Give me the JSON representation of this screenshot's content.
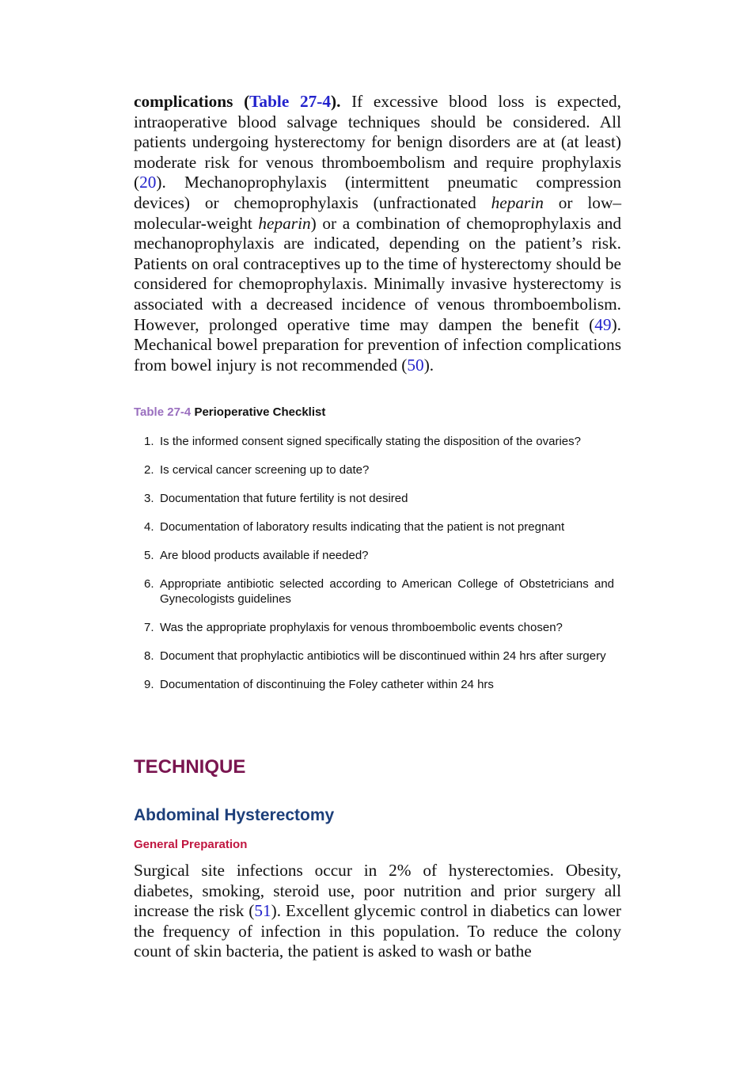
{
  "body_paragraph_1": {
    "runs": [
      "complications (",
      "Table 27-4",
      ").",
      " If excessive blood loss is expected, intraoperative blood salvage techniques should be considered. All patients undergoing hysterectomy for benign disorders are at (at least) moderate risk for venous thromboembolism and require prophylaxis (",
      "20",
      "). Mechanoprophylaxis (intermittent pneumatic compression devices) or chemoprophylaxis (unfractionated ",
      "heparin",
      " or low–molecular-weight ",
      "heparin",
      ") or a combination of chemoprophylaxis and mechanoprophylaxis are indicated, depending on the patient’s risk. Patients on oral contraceptives up to the time of hysterectomy should be considered for chemoprophylaxis. Minimally invasive hysterectomy is associated with a decreased incidence of venous thromboembolism. However, prolonged operative time may dampen the benefit (",
      "49",
      "). Mechanical bowel preparation for prevention of infection complications from bowel injury is not recommended (",
      "50",
      ")."
    ]
  },
  "table": {
    "label": "Table 27-4",
    "title": "Perioperative Checklist",
    "items": [
      {
        "number": "1.",
        "text": "Is the informed consent signed specifically stating the disposition of the ovaries?"
      },
      {
        "number": "2.",
        "text": "Is cervical cancer screening up to date?"
      },
      {
        "number": "3.",
        "text": "Documentation that future fertility is not desired"
      },
      {
        "number": "4.",
        "text": "Documentation of laboratory results indicating that the patient is not pregnant"
      },
      {
        "number": "5.",
        "text": "Are blood products available if needed?"
      },
      {
        "number": "6.",
        "text": "Appropriate antibiotic selected according to American College of Obstetricians and Gynecologists guidelines"
      },
      {
        "number": "7.",
        "text": "Was the appropriate prophylaxis for venous thromboembolic events chosen?"
      },
      {
        "number": "8.",
        "text": "Document that prophylactic antibiotics will be discontinued within 24 hrs after surgery"
      },
      {
        "number": "9.",
        "text": "Documentation of discontinuing the Foley catheter within 24 hrs"
      }
    ]
  },
  "heading_1": "TECHNIQUE",
  "heading_2": "Abdominal Hysterectomy",
  "heading_3": "General Preparation",
  "body_paragraph_2": {
    "runs": [
      "Surgical site infections occur in 2% of hysterectomies. Obesity, diabetes, smoking, steroid use, poor nutrition and prior surgery all increase the risk (",
      "51",
      "). Excellent glycemic control in diabetics can lower the frequency of infection in this population. To reduce the colony count of skin bacteria, the patient is asked to wash or bathe"
    ]
  }
}
